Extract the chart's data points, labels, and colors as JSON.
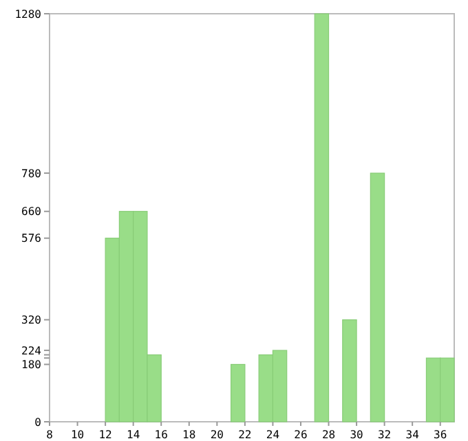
{
  "chart_data": {
    "type": "histogram",
    "bins": [
      8,
      9,
      10,
      11,
      12,
      13,
      14,
      15,
      16,
      17,
      18,
      19,
      20,
      21,
      22,
      23,
      24,
      25,
      26,
      27,
      28,
      29,
      30,
      31,
      32,
      33,
      34,
      35,
      36,
      37
    ],
    "values": [
      0,
      0,
      0,
      0,
      576,
      660,
      660,
      210,
      0,
      0,
      0,
      0,
      0,
      180,
      0,
      210,
      224,
      0,
      0,
      1280,
      0,
      320,
      0,
      780,
      0,
      0,
      0,
      200,
      200
    ],
    "color": "#99dd88",
    "xlim": [
      8,
      37
    ],
    "xticks": [
      8,
      10,
      12,
      14,
      16,
      18,
      20,
      22,
      24,
      26,
      28,
      30,
      32,
      34,
      36
    ],
    "ylim": [
      0,
      1280
    ],
    "yticks": [
      0,
      180,
      {
        "value": 200,
        "label": null
      },
      {
        "value": 210,
        "label": null
      },
      224,
      320,
      576,
      660,
      780,
      1280
    ],
    "grid": false
  }
}
